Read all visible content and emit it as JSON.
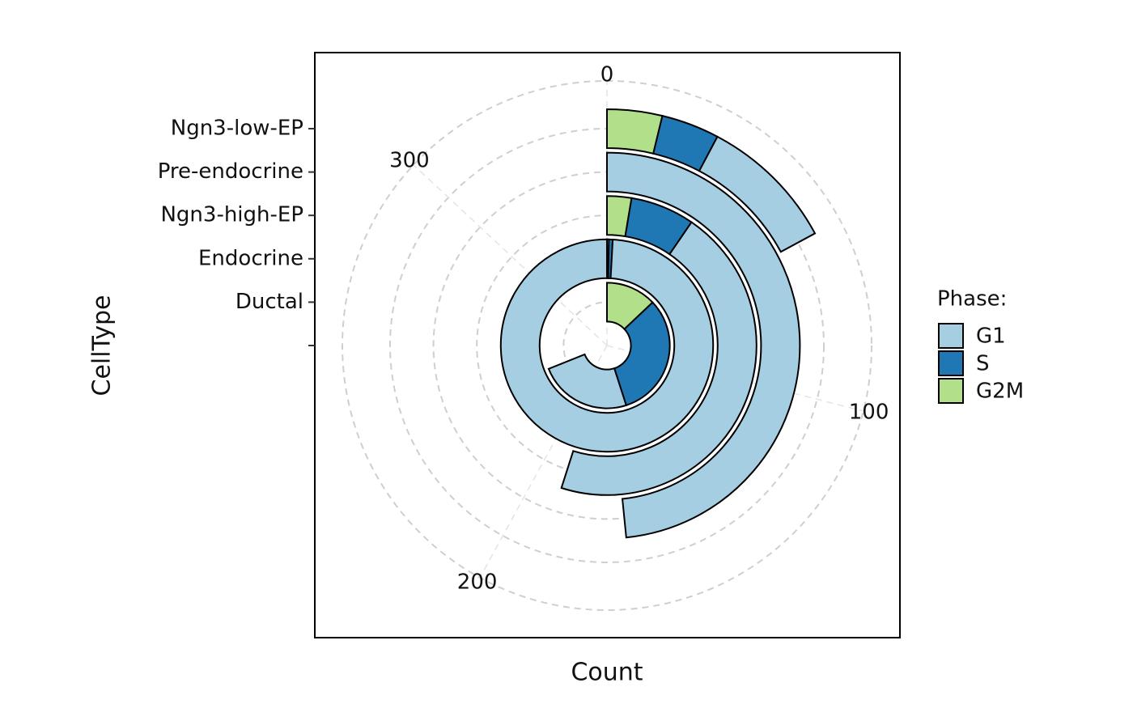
{
  "chart_data": {
    "type": "radial-stacked-bar",
    "x_label": "Count",
    "y_label": "CellType",
    "legend_title": "Phase:",
    "categories": [
      null,
      "Ductal",
      "Endocrine",
      "Ngn3-high-EP",
      "Pre-endocrine",
      "Ngn3-low-EP"
    ],
    "series": [
      {
        "name": "G1",
        "color": "#a6cee3",
        "values": [
          null,
          82.5,
          342,
          156.5,
          167,
          32.4
        ]
      },
      {
        "name": "S",
        "color": "#1f78b4",
        "values": [
          null,
          110.7,
          2,
          23.9,
          0,
          13.7
        ]
      },
      {
        "name": "G2M",
        "color": "#b2df8a",
        "values": [
          null,
          44.7,
          1,
          9.1,
          0,
          13.0
        ]
      }
    ],
    "ylim": [
      0,
      345
    ],
    "yticks": [
      0,
      100,
      200,
      300
    ],
    "grid": true
  }
}
